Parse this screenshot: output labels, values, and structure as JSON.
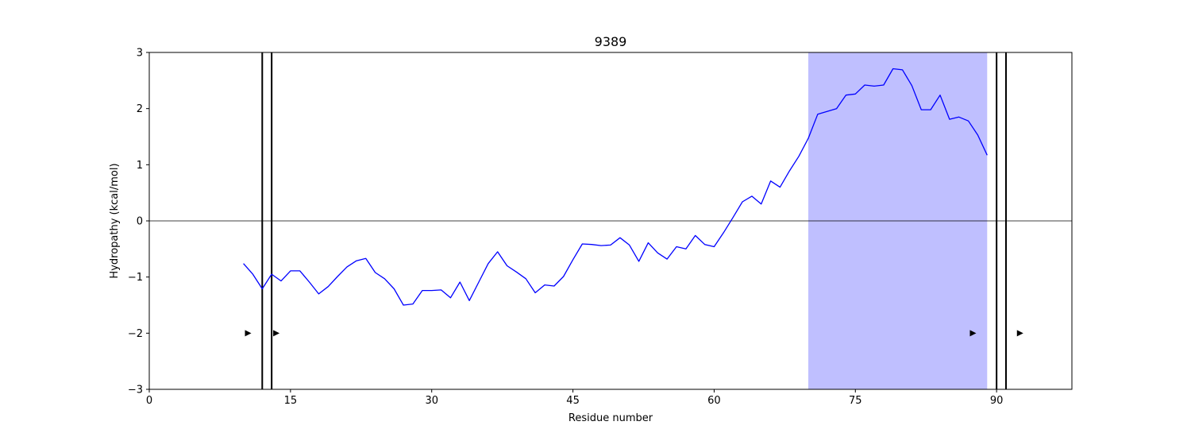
{
  "chart_data": {
    "type": "line",
    "title": "9389",
    "xlabel": "Residue number",
    "ylabel": "Hydropathy (kcal/mol)",
    "xlim": [
      0,
      98
    ],
    "ylim": [
      -3,
      3
    ],
    "xticks": [
      0,
      15,
      30,
      45,
      60,
      75,
      90
    ],
    "yticks": [
      -3,
      -2,
      -1,
      0,
      1,
      2,
      3
    ],
    "ytick_labels": [
      "−3",
      "−2",
      "−1",
      "0",
      "1",
      "2",
      "3"
    ],
    "grid": false,
    "zero_line": 0,
    "series": [
      {
        "color": "#0000ff",
        "x": [
          10,
          11,
          12,
          13,
          14,
          15,
          16,
          17,
          18,
          19,
          20,
          21,
          22,
          23,
          24,
          25,
          26,
          27,
          28,
          29,
          30,
          31,
          32,
          33,
          34,
          35,
          36,
          37,
          38,
          39,
          40,
          41,
          42,
          43,
          44,
          45,
          46,
          47,
          48,
          49,
          50,
          51,
          52,
          53,
          54,
          55,
          56,
          57,
          58,
          59,
          60,
          61,
          62,
          63,
          64,
          65,
          66,
          67,
          68,
          69,
          70,
          71,
          72,
          73,
          74,
          75,
          76,
          77,
          78,
          79,
          80,
          81,
          82,
          83,
          84,
          85,
          86,
          87,
          88,
          89
        ],
        "y": [
          -0.76,
          -0.95,
          -1.21,
          -0.95,
          -1.07,
          -0.89,
          -0.89,
          -1.09,
          -1.3,
          -1.17,
          -0.99,
          -0.82,
          -0.71,
          -0.67,
          -0.92,
          -1.03,
          -1.21,
          -1.5,
          -1.48,
          -1.24,
          -1.24,
          -1.23,
          -1.37,
          -1.09,
          -1.42,
          -1.09,
          -0.76,
          -0.55,
          -0.8,
          -0.91,
          -1.03,
          -1.28,
          -1.14,
          -1.16,
          -0.99,
          -0.69,
          -0.41,
          -0.42,
          -0.44,
          -0.43,
          -0.3,
          -0.43,
          -0.72,
          -0.39,
          -0.57,
          -0.68,
          -0.46,
          -0.5,
          -0.26,
          -0.42,
          -0.46,
          -0.21,
          0.06,
          0.34,
          0.44,
          0.3,
          0.71,
          0.6,
          0.89,
          1.15,
          1.47,
          1.9,
          1.95,
          2.0,
          2.24,
          2.26,
          2.42,
          2.4,
          2.42,
          2.71,
          2.69,
          2.41,
          1.98,
          1.98,
          2.24,
          1.81,
          1.85,
          1.78,
          1.53,
          1.17
        ]
      }
    ],
    "shaded_region": {
      "x_start": 70,
      "x_end": 89,
      "color": "#bfbfff"
    },
    "vertical_lines": [
      12,
      13,
      90,
      91
    ],
    "markers": [
      {
        "x": 10.5,
        "y": -2
      },
      {
        "x": 13.5,
        "y": -2
      },
      {
        "x": 87.5,
        "y": -2
      },
      {
        "x": 92.5,
        "y": -2
      }
    ]
  }
}
